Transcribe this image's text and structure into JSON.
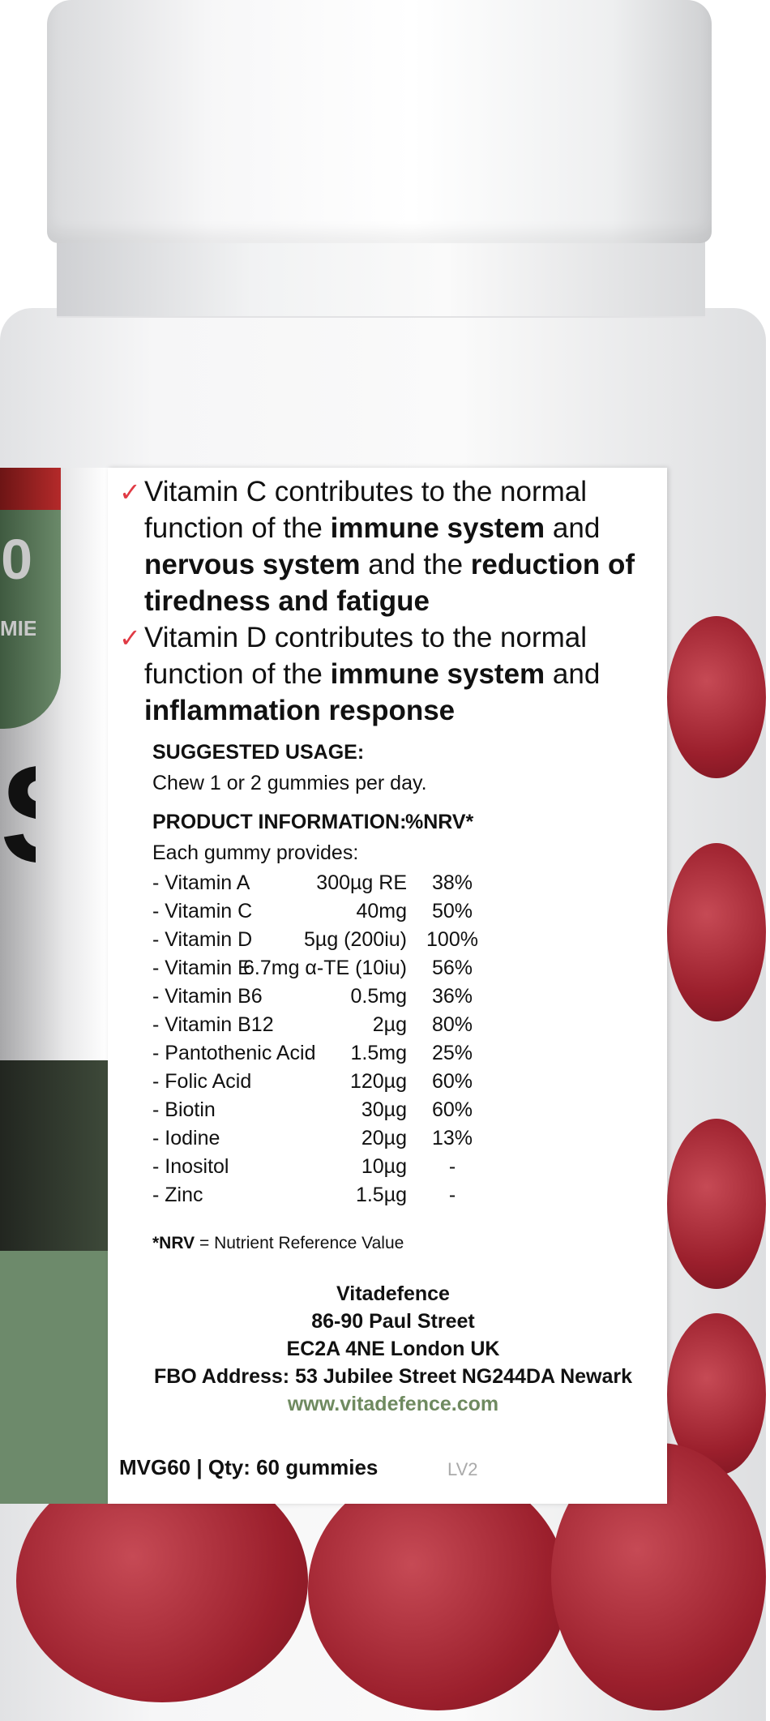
{
  "bottle": {
    "colors": {
      "cap": "#f5f5f6",
      "gummy": "#a12532",
      "check": "#e03a44",
      "badge_green": "#5f7c5e",
      "red_bar": "#b42a2a",
      "url_green": "#6f8a60"
    },
    "front_fragment": {
      "badge_number": "0",
      "badge_text": "MIES",
      "title_fragment": "S"
    }
  },
  "claims": [
    {
      "icon": "checkmark-icon",
      "parts": [
        "Vitamin C contributes to the normal function of the ",
        "immune system",
        " and ",
        "nervous system",
        " and the ",
        "reduction of tiredness and fatigue"
      ]
    },
    {
      "icon": "checkmark-icon",
      "parts": [
        "Vitamin D contributes to the normal function of the ",
        "immune system",
        " and ",
        "inflammation response"
      ]
    }
  ],
  "usage": {
    "heading": "SUGGESTED USAGE:",
    "text": "Chew 1 or 2 gummies per day."
  },
  "product_info": {
    "heading": "PRODUCT INFORMATION:",
    "nrv_heading": "%NRV*",
    "intro": "Each gummy provides:",
    "rows": [
      {
        "name": "- Vitamin A",
        "amount": "300µg RE",
        "nrv": "38%"
      },
      {
        "name": "- Vitamin C",
        "amount": "40mg",
        "nrv": "50%"
      },
      {
        "name": "- Vitamin D",
        "amount": "5µg (200iu)",
        "nrv": "100%"
      },
      {
        "name": "- Vitamin E",
        "amount": "6.7mg α-TE (10iu)",
        "nrv": "56%"
      },
      {
        "name": "- Vitamin B6",
        "amount": "0.5mg",
        "nrv": "36%"
      },
      {
        "name": "- Vitamin B12",
        "amount": "2µg",
        "nrv": "80%"
      },
      {
        "name": "- Pantothenic Acid",
        "amount": "1.5mg",
        "nrv": "25%"
      },
      {
        "name": "- Folic Acid",
        "amount": "120µg",
        "nrv": "60%"
      },
      {
        "name": "- Biotin",
        "amount": "30µg",
        "nrv": "60%"
      },
      {
        "name": "- Iodine",
        "amount": "20µg",
        "nrv": "13%"
      },
      {
        "name": "- Inositol",
        "amount": "10µg",
        "nrv": "-"
      },
      {
        "name": "- Zinc",
        "amount": "1.5µg",
        "nrv": "-"
      }
    ],
    "footnote_key": "*NRV",
    "footnote_text": " = Nutrient Reference Value"
  },
  "address": {
    "company": "Vitadefence",
    "street": "86-90 Paul Street",
    "city": "EC2A 4NE London UK",
    "fbo": "FBO Address: 53 Jubilee Street NG244DA Newark",
    "url": "www.vitadefence.com"
  },
  "footer": {
    "sku": "MVG60 | Qty: 60 gummies",
    "version": "LV2"
  }
}
